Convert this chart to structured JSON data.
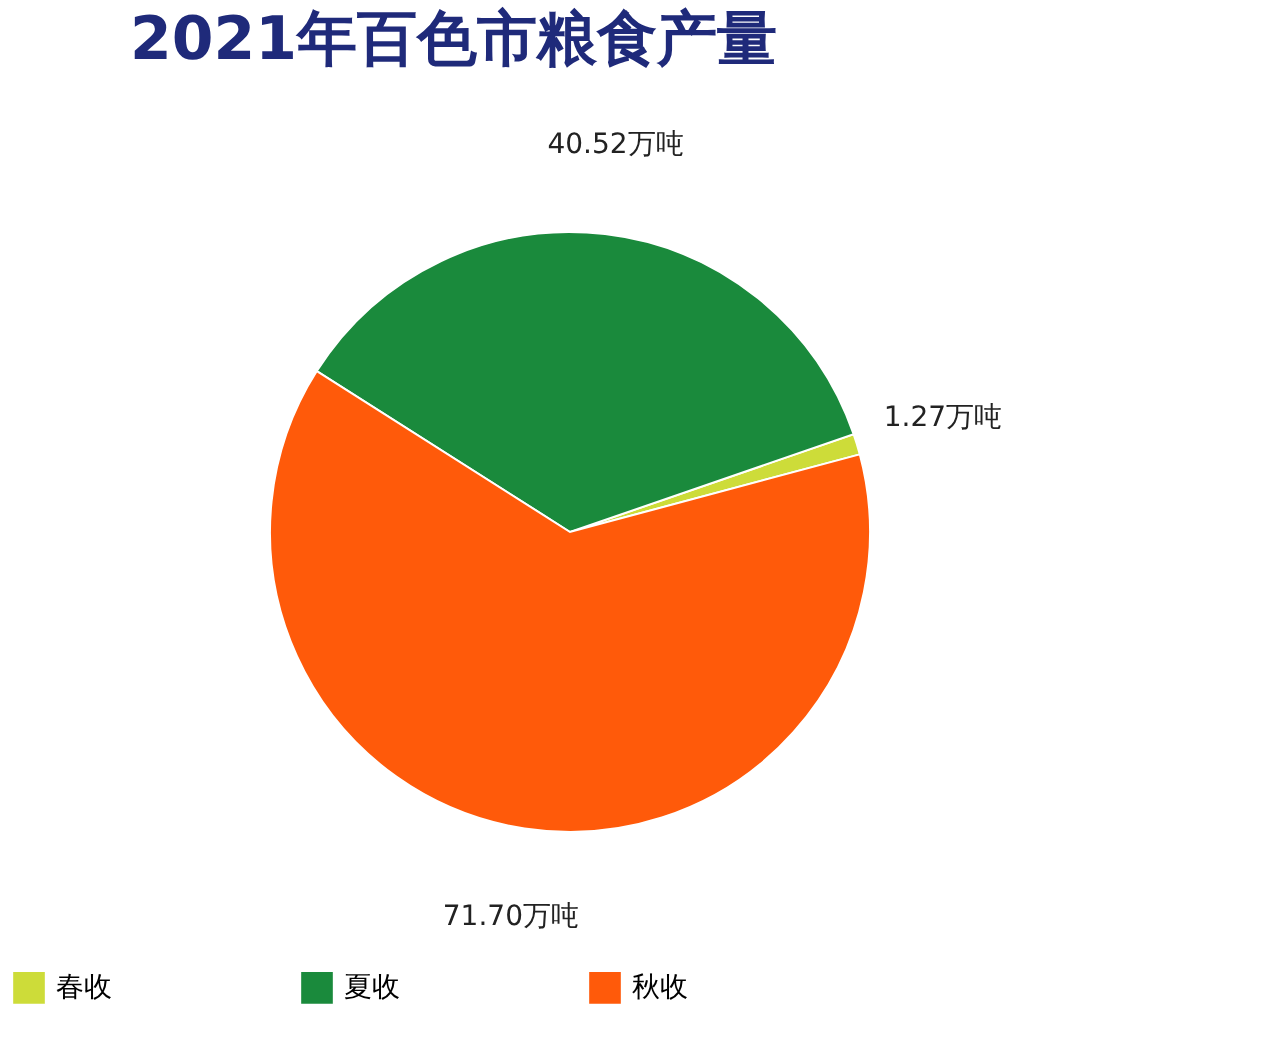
{
  "chart_data": {
    "type": "pie",
    "title": "2021年百色市粮食产量",
    "categories": [
      "春收",
      "夏收",
      "秋收"
    ],
    "values": [
      1.27,
      40.52,
      71.7
    ],
    "value_labels": [
      "1.27万吨",
      "40.52万吨",
      "71.70万吨"
    ],
    "colors": [
      "#cddc39",
      "#1a8a3c",
      "#ff5a0a"
    ],
    "legend": "bottom"
  }
}
